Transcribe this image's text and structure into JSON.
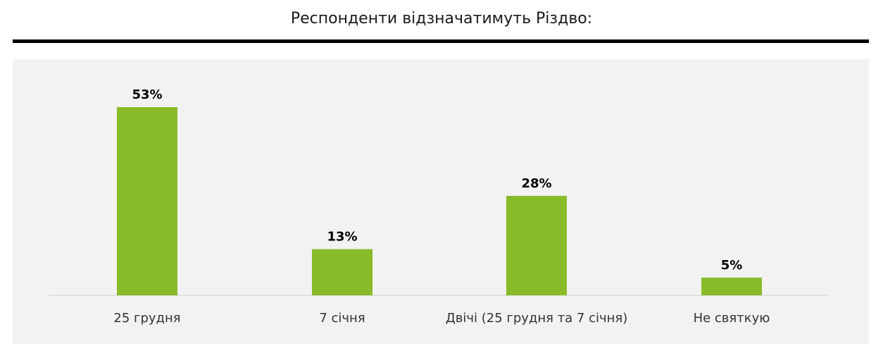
{
  "chart_data": {
    "type": "bar",
    "title": "Респонденти відзначатимуть Різдво:",
    "categories": [
      "25 грудня",
      "7 січня",
      "Двічі (25 грудня та 7 січня)",
      "Не святкую"
    ],
    "values": [
      53,
      13,
      28,
      5
    ],
    "value_labels": [
      "53%",
      "13%",
      "28%",
      "5%"
    ],
    "unit": "%",
    "ylim": [
      0,
      53
    ],
    "grid": false,
    "legend": "none",
    "bar_color": "#88bb28",
    "panel_color": "#f2f2f2",
    "rule_color": "#000000"
  }
}
